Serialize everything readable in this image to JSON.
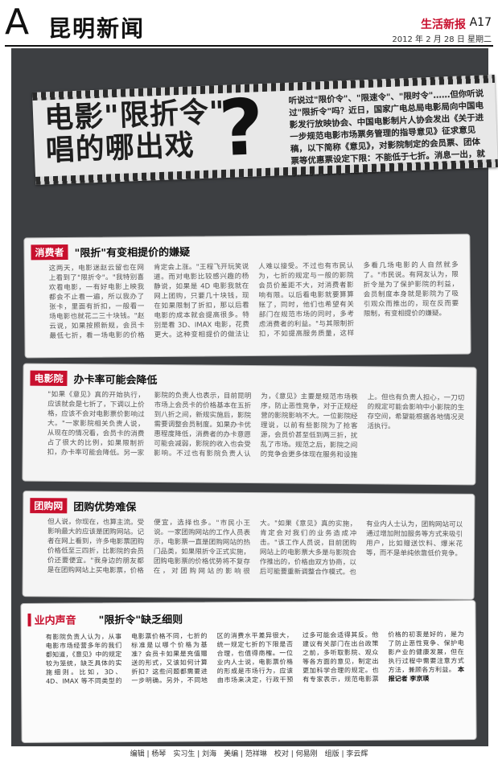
{
  "header": {
    "section_letter": "A",
    "section_name": "昆明新闻",
    "brand": "生活新报",
    "page_no": "A17",
    "date": "2012 年 2 月 28 日 星期二"
  },
  "banner": {
    "headline_1": "电影\"限折令\"",
    "headline_2": "唱的哪出戏",
    "qmark": "?",
    "intro": "听说过\"限价令\"、\"限速令\"、\"限时令\"……但你听说过\"限折令\"吗？近日，国家广电总局电影局向中国电影发行放映协会、中国电影制片人协会发出《关于进一步规范电影市场票务管理的指导意见》征求意见稿，以下简称《意见》，对影院制定的会员票、团体票等优惠票设定下限：不能低于七折。消息一出，就引起了大家的广泛关注。"
  },
  "sections": [
    {
      "tag": "消费者",
      "title": "\"限折\"有变相提价的嫌疑",
      "body": "这两天，电影迷赵云留也在网上看到了\"限折令\"。\"我特别喜欢看电影，一有好电影上映我都会不止看一遍，所以我办了张卡，里面有折扣，一般看一场电影也就花二三十块钱。\"赵云说，如果按照新规，会员卡最低七折，看一场电影的价格肯定会上涨。\"王程飞开玩笑说道。而对电影比较感兴趣的杨静说，如果是 4D 电影我就在网上团购，只要几十块钱，现在如果限制了折扣，那以后看电影的成本就会提高很多。特别是看 3D、IMAX 电影，花费更大。这种变相提价的做法让人难以接受。不过也有市民认为，七折的规定与一般的影院会员价差距不大，对消费者影响有限。以后看电影就要算算账了，同时，他们也希望有关部门在规范市场的同时，多考虑消费者的利益。\"与其限制折扣，不如提高服务质量，这样多看几场电影的人自然就多了。\"市民说。有网友认为，限折令是为了保护影院的利益，会员制度本身就是影院为了吸引观众而推出的，现在反而要限制，有变相提价的嫌疑。"
    },
    {
      "tag": "电影院",
      "title": "办卡率可能会降低",
      "body": "\"如果《意见》真的开始执行，应该就会是七折了，下调以上价格，应该不会对电影票价影响过大。\"一家影院相关负责人说，从现在的情况看，会员卡的消费占了很大的比例，如果限制折扣，办卡率可能会降低。另一家影院的负责人也表示，目前昆明市场上会员卡的价格基本在五折到八折之间，新规实施后，影院需要调整会员制度。如果办卡优惠程度降低，消费者的办卡意愿可能会减弱，影院的收入也会受影响。不过也有影院负责人认为，《意见》主要是规范市场秩序，防止恶性竞争，对于正规经营的影院影响不大。一位影院经理说，以前有些影院为了抢客源，会员价甚至低到两三折，扰乱了市场。规范之后，影院之间的竞争会更多体现在服务和设施上。但也有负责人担心，一刀切的规定可能会影响中小影院的生存空间，希望能根据各地情况灵活执行。"
    },
    {
      "tag": "团购网",
      "title": "团购优势难保",
      "body": "但人说，你现在，也算主流。受影响最大的应该是团购网站。记者在网上看到，许多电影票团购价格低至三四折，比影院的会员价还要便宜。\"我身边的朋友都是在团购网站上买电影票，价格便宜，选择也多。\"市民小王说。一家团购网站的工作人员表示，电影票一直是团购网站的热门品类，如果限折令正式实施，团购电影票的价格优势将不复存在，对团购网站的影响很大。\"如果《意见》真的实施，肯定会对我们的业务造成冲击。\"该工作人员说，目前团购网站上的电影票大多是与影院合作推出的，价格由双方协商，以后可能要重新调整合作模式。也有业内人士认为，团购网站可以通过增加附加服务等方式来吸引用户，比如赠送饮料、爆米花等，而不是单纯依靠低价竞争。"
    },
    {
      "tag": "业内声音",
      "title": "\"限折令\"缺乏细则",
      "body": "有影院负责人认为，从事电影市场经营多年的我们都知道，《意见》中的规定较为笼统，缺乏具体的实施细则。比如，3D、4D、IMAX 等不同类型的电影票价格不同，七折的标准是以哪个价格为基准？会员卡如果是充值赠送的形式，又该如何计算折扣？这些问题都需要进一步明确。另外，不同地区的消费水平差异很大，统一规定七折的下限是否合理，也值得商榷。一位业内人士说，电影票价格的形成是市场行为，应该由市场来决定，行政干预过多可能会适得其反。他建议有关部门在出台政策之前，多听取影院、观众等各方面的意见，制定出更加科学合理的规定。也有专家表示，规范电影票价格的初衷是好的，是为了防止恶性竞争、保护电影产业的健康发展，但在执行过程中需要注意方式方法，兼顾各方利益。",
      "signed": "本报记者 李京瑛"
    }
  ],
  "footer": "编辑 | 杨琴　实习生 | 刘海　美编 | 范祥琳　校对 | 何易刚　组版 | 李云辉"
}
